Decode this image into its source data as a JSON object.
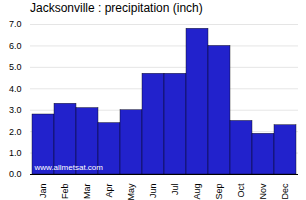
{
  "chart_data": {
    "type": "bar",
    "title": "Jacksonville : precipitation (inch)",
    "categories": [
      "Jan",
      "Feb",
      "Mar",
      "Apr",
      "May",
      "Jun",
      "Jul",
      "Aug",
      "Sep",
      "Oct",
      "Nov",
      "Dec"
    ],
    "values": [
      2.8,
      3.3,
      3.1,
      2.4,
      3.0,
      4.7,
      4.7,
      6.8,
      6.0,
      2.5,
      1.9,
      2.3
    ],
    "color": "#2222cc",
    "ylim": [
      0,
      7
    ],
    "yticks": [
      0,
      1,
      2,
      3,
      4,
      5,
      6,
      7
    ],
    "grid": true,
    "annotations": [
      "www.allmetsat.com"
    ]
  }
}
